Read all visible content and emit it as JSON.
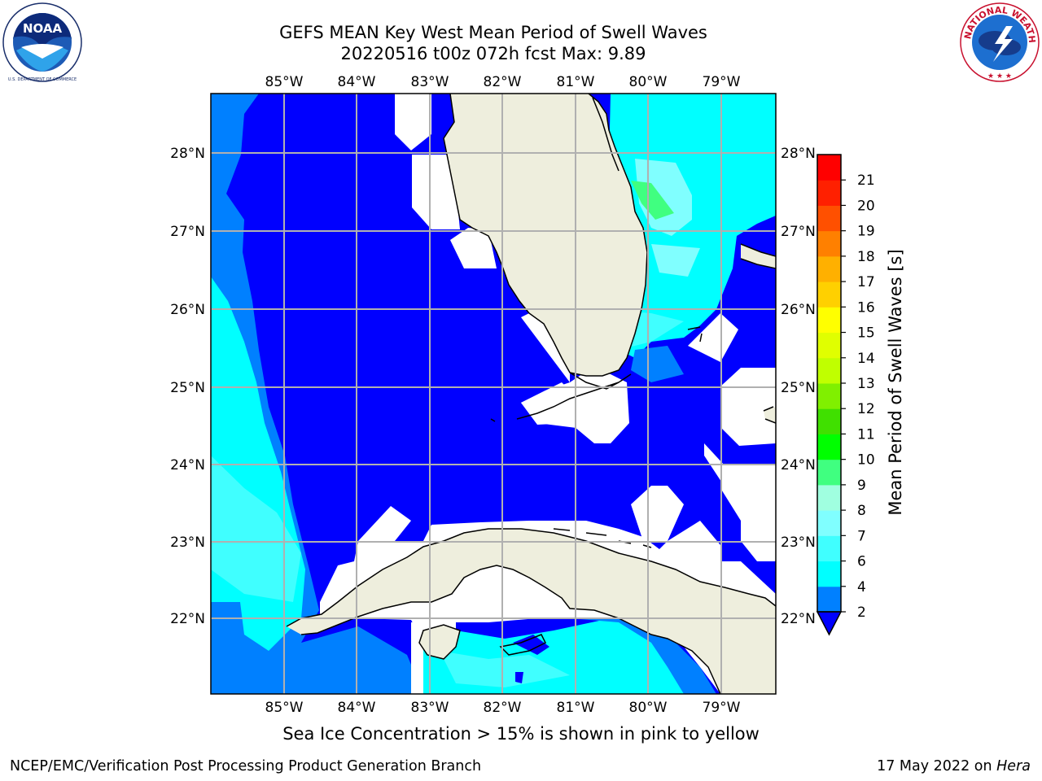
{
  "header": {
    "title_line1": "GEFS MEAN Key West Mean Period of Swell Waves",
    "title_line2": "20220516 t00z 072h fcst   Max: 9.89"
  },
  "logos": {
    "left": "NOAA",
    "left_ring_text": "NATIONAL OCEANIC AND ATMOSPHERIC ADMINISTRATION · U.S. DEPARTMENT OF COMMERCE",
    "right_ring_text": "NATIONAL WEATHER SERVICE"
  },
  "map": {
    "lon_labels": [
      "85°W",
      "84°W",
      "83°W",
      "82°W",
      "81°W",
      "80°W",
      "79°W"
    ],
    "lat_labels": [
      "28°N",
      "27°N",
      "26°N",
      "25°N",
      "24°N",
      "23°N",
      "22°N"
    ],
    "colors": {
      "land": "#eeeedd",
      "grid": "#b0b0b0",
      "mask": "#ffffff"
    }
  },
  "colorbar": {
    "label": "Mean Period of Swell Waves [s]",
    "ticks": [
      "2",
      "4",
      "6",
      "7",
      "8",
      "9",
      "10",
      "11",
      "12",
      "13",
      "14",
      "15",
      "16",
      "17",
      "18",
      "19",
      "20",
      "21"
    ],
    "colors": [
      "#0000ff",
      "#0080ff",
      "#00ffff",
      "#40ffff",
      "#80ffff",
      "#a0ffe0",
      "#40ff80",
      "#00ff00",
      "#40e000",
      "#80f000",
      "#c0ff00",
      "#e0ff00",
      "#ffff00",
      "#ffd000",
      "#ffb000",
      "#ff8000",
      "#ff5000",
      "#ff2000",
      "#ff0000"
    ],
    "under_color": "#0000ff"
  },
  "caption": "Sea Ice Concentration > 15% is shown in pink to yellow",
  "footer": {
    "left": "NCEP/EMC/Verification Post Processing Product Generation Branch",
    "right_prefix": "17 May 2022 on ",
    "right_host": "Hera"
  }
}
